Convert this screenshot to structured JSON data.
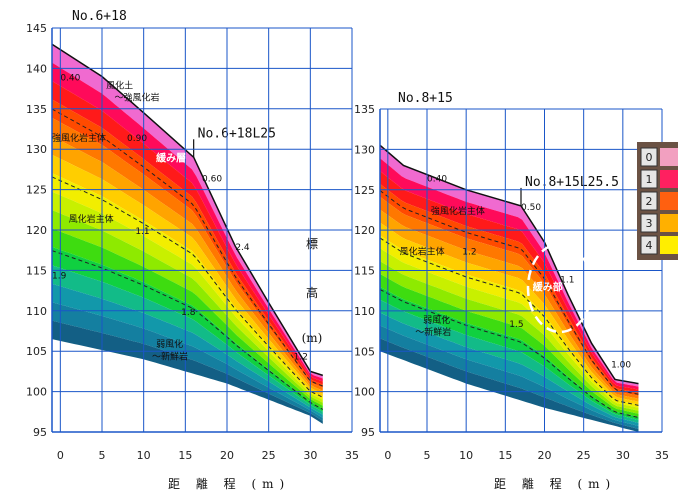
{
  "chart_data": [
    {
      "type": "area",
      "title": "No.6+18",
      "xlabel": "距 離 程 (m)",
      "ylabel_chars": [
        "標",
        "高",
        "(m)"
      ],
      "xlim": [
        -1,
        35
      ],
      "ylim": [
        95,
        145
      ],
      "xticks": [
        0,
        5,
        10,
        15,
        20,
        25,
        30,
        35
      ],
      "yticks": [
        95,
        100,
        105,
        110,
        115,
        120,
        125,
        130,
        135,
        140,
        145
      ],
      "grid": true,
      "surface_profile": [
        [
          -1,
          143
        ],
        [
          5,
          139
        ],
        [
          10,
          134.5
        ],
        [
          16,
          129
        ],
        [
          21,
          118
        ],
        [
          25,
          111
        ],
        [
          30,
          102.5
        ],
        [
          31.5,
          102
        ]
      ],
      "base_profile": [
        [
          -1,
          106.5
        ],
        [
          10,
          104
        ],
        [
          20,
          101
        ],
        [
          30,
          97
        ],
        [
          31.5,
          96
        ]
      ],
      "boreholes": [
        {
          "label": "No.6+18L25",
          "x": 16,
          "y": 129
        }
      ],
      "annotations": [
        {
          "text": "0.40",
          "x": 0,
          "y": 138.5
        },
        {
          "text": "風化土",
          "x": 5.5,
          "y": 137.5
        },
        {
          "text": "～強風化岩",
          "x": 6.5,
          "y": 136
        },
        {
          "text": "強風化岩主体",
          "x": -1,
          "y": 131
        },
        {
          "text": "0.90",
          "x": 8,
          "y": 131
        },
        {
          "text": "緩み層",
          "x": 11.5,
          "y": 128.5
        },
        {
          "text": "0.60",
          "x": 17,
          "y": 126
        },
        {
          "text": "風化岩主体",
          "x": 1,
          "y": 121
        },
        {
          "text": "1.1",
          "x": 9,
          "y": 119.5
        },
        {
          "text": "2.4",
          "x": 21,
          "y": 117.5
        },
        {
          "text": "1.9",
          "x": -1,
          "y": 114
        },
        {
          "text": "1.8",
          "x": 14.5,
          "y": 109.5
        },
        {
          "text": "弱風化",
          "x": 11.5,
          "y": 105.5
        },
        {
          "text": "～新鮮岩",
          "x": 11,
          "y": 104
        },
        {
          "text": "1.2",
          "x": 28,
          "y": 104
        }
      ]
    },
    {
      "type": "area",
      "title": "No.8+15",
      "xlabel": "距 離 程 (m)",
      "xlim": [
        -1,
        35
      ],
      "ylim": [
        95,
        135
      ],
      "xticks": [
        0,
        5,
        10,
        15,
        20,
        25,
        30,
        35
      ],
      "yticks": [
        95,
        100,
        105,
        110,
        115,
        120,
        125,
        130,
        135
      ],
      "grid": true,
      "surface_profile": [
        [
          -1,
          130.5
        ],
        [
          2,
          128
        ],
        [
          10,
          125
        ],
        [
          17,
          123
        ],
        [
          20,
          118.5
        ],
        [
          23,
          112
        ],
        [
          26,
          106
        ],
        [
          29,
          101.5
        ],
        [
          32,
          101
        ]
      ],
      "base_profile": [
        [
          -1,
          105
        ],
        [
          10,
          101
        ],
        [
          20,
          98
        ],
        [
          26,
          96.5
        ],
        [
          32,
          95
        ]
      ],
      "boreholes": [
        {
          "label": "No.8+15L25.5",
          "x": 17,
          "y": 123
        }
      ],
      "annotations": [
        {
          "text": "0.40",
          "x": 5,
          "y": 126
        },
        {
          "text": "0.50",
          "x": 17,
          "y": 122.5
        },
        {
          "text": "強風化岩主体",
          "x": 5.5,
          "y": 122
        },
        {
          "text": "風化岩主体",
          "x": 1.5,
          "y": 117
        },
        {
          "text": "1.2",
          "x": 9.5,
          "y": 117
        },
        {
          "text": "緩み部",
          "x": 18.5,
          "y": 112.5
        },
        {
          "text": "1.1",
          "x": 22,
          "y": 113.5
        },
        {
          "text": "弱風化",
          "x": 4.5,
          "y": 108.5
        },
        {
          "text": "～新鮮岩",
          "x": 3.5,
          "y": 107
        },
        {
          "text": "1.5",
          "x": 15.5,
          "y": 108
        },
        {
          "text": "1.00",
          "x": 28.5,
          "y": 103
        }
      ]
    }
  ],
  "legend_sample": {
    "labels": [
      "0",
      "1",
      "2",
      "3",
      "4"
    ],
    "colors": [
      "#f2a0c0",
      "#ff2060",
      "#ff6010",
      "#ffb000",
      "#ffee00"
    ]
  }
}
